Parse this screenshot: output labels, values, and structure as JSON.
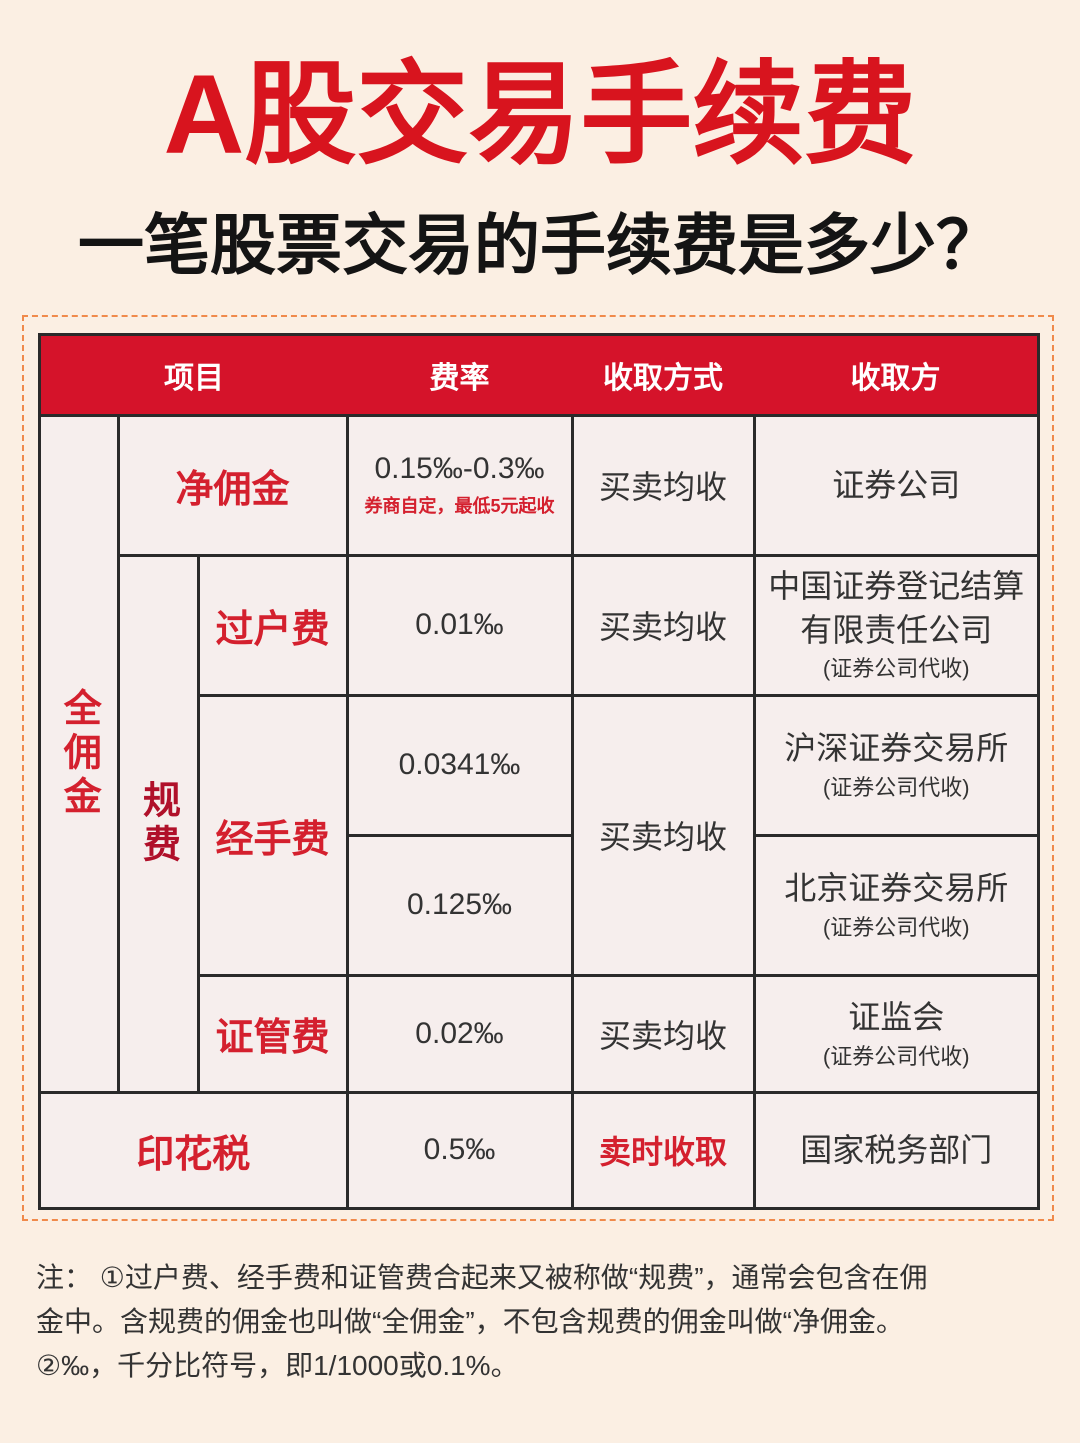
{
  "header": {
    "title": "A股交易手续费",
    "subtitle": "一笔股票交易的手续费是多少？"
  },
  "table": {
    "columns": [
      "项目",
      "费率",
      "收取方式",
      "收取方"
    ],
    "full_commission": "全佣金",
    "regulatory_fees": "规费",
    "rows": [
      {
        "item": "净佣金",
        "rate": "0.15‰-0.3‰",
        "rate_note": "券商自定，最低5元起收",
        "method": "买卖均收",
        "collector": [
          "证券公司"
        ]
      },
      {
        "item": "过户费",
        "rate": "0.01‰",
        "method": "买卖均收",
        "collector": [
          "中国证券登记结算",
          "有限责任公司"
        ],
        "collector_note": "(证券公司代收)"
      },
      {
        "item": "经手费",
        "rates": [
          "0.0341‰",
          "0.125‰"
        ],
        "method": "买卖均收",
        "collectors": [
          {
            "name": "沪深证券交易所",
            "note": "(证券公司代收)"
          },
          {
            "name": "北京证券交易所",
            "note": "(证券公司代收)"
          }
        ]
      },
      {
        "item": "证管费",
        "rate": "0.02‰",
        "method": "买卖均收",
        "collector": [
          "证监会"
        ],
        "collector_note": "(证券公司代收)"
      },
      {
        "item": "印花税",
        "rate": "0.5‰",
        "method": "卖时收取",
        "collector": [
          "国家税务部门"
        ]
      }
    ]
  },
  "notes": [
    "注：  ①过户费、经手费和证管费合起来又被称做“规费”，通常会包含在佣",
    "金中。含规费的佣金也叫做“全佣金”，不包含规费的佣金叫做“净佣金。",
    "②‰，千分比符号，即1/1000或0.1%。"
  ]
}
